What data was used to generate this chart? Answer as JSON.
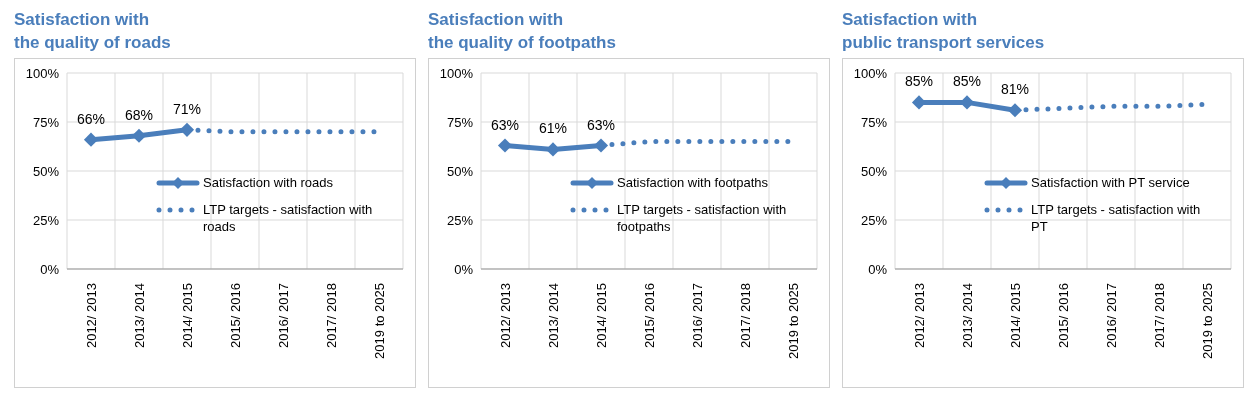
{
  "chart_data": [
    {
      "type": "line",
      "title": "Satisfaction with\nthe quality of roads",
      "categories": [
        "2012/ 2013",
        "2013/ 2014",
        "2014/ 2015",
        "2015/ 2016",
        "2016/ 2017",
        "2017/ 2018",
        "2019 to 2025"
      ],
      "series": [
        {
          "name": "Satisfaction with roads",
          "color": "#4a7ebb",
          "values": [
            66,
            68,
            71,
            null,
            null,
            null,
            null
          ],
          "value_labels": [
            "66%",
            "68%",
            "71%",
            null,
            null,
            null,
            null
          ],
          "marker": "diamond",
          "line_style": "solid"
        },
        {
          "name": "LTP targets - satisfaction with roads",
          "color": "#4a7ebb",
          "values": [
            null,
            null,
            71,
            70,
            70,
            70,
            70
          ],
          "marker": "none",
          "line_style": "dotted"
        }
      ],
      "ylim": [
        0,
        100
      ],
      "yticks": [
        {
          "value": 0,
          "label": "0%"
        },
        {
          "value": 25,
          "label": "25%"
        },
        {
          "value": 50,
          "label": "50%"
        },
        {
          "value": 75,
          "label": "75%"
        },
        {
          "value": 100,
          "label": "100%"
        }
      ],
      "grid": true,
      "legend": "right"
    },
    {
      "type": "line",
      "title": "Satisfaction with\nthe quality of footpaths",
      "categories": [
        "2012/ 2013",
        "2013/ 2014",
        "2014/ 2015",
        "2015/ 2016",
        "2016/ 2017",
        "2017/ 2018",
        "2019 to 2025"
      ],
      "series": [
        {
          "name": "Satisfaction with footpaths",
          "color": "#4a7ebb",
          "values": [
            63,
            61,
            63,
            null,
            null,
            null,
            null
          ],
          "value_labels": [
            "63%",
            "61%",
            "63%",
            null,
            null,
            null,
            null
          ],
          "marker": "diamond",
          "line_style": "solid"
        },
        {
          "name": "LTP targets - satisfaction with footpaths",
          "color": "#4a7ebb",
          "values": [
            null,
            null,
            63,
            65,
            65,
            65,
            65
          ],
          "marker": "none",
          "line_style": "dotted"
        }
      ],
      "ylim": [
        0,
        100
      ],
      "yticks": [
        {
          "value": 0,
          "label": "0%"
        },
        {
          "value": 25,
          "label": "25%"
        },
        {
          "value": 50,
          "label": "50%"
        },
        {
          "value": 75,
          "label": "75%"
        },
        {
          "value": 100,
          "label": "100%"
        }
      ],
      "grid": true,
      "legend": "right"
    },
    {
      "type": "line",
      "title": "Satisfaction with\npublic transport services",
      "categories": [
        "2012/ 2013",
        "2013/ 2014",
        "2014/ 2015",
        "2015/ 2016",
        "2016/ 2017",
        "2017/ 2018",
        "2019 to 2025"
      ],
      "series": [
        {
          "name": "Satisfaction with PT service",
          "color": "#4a7ebb",
          "values": [
            85,
            85,
            81,
            null,
            null,
            null,
            null
          ],
          "value_labels": [
            "85%",
            "85%",
            "81%",
            null,
            null,
            null,
            null
          ],
          "marker": "diamond",
          "line_style": "solid"
        },
        {
          "name": "LTP targets - satisfaction with PT",
          "color": "#4a7ebb",
          "values": [
            null,
            null,
            81,
            82,
            83,
            83,
            84
          ],
          "marker": "none",
          "line_style": "dotted"
        }
      ],
      "ylim": [
        0,
        100
      ],
      "yticks": [
        {
          "value": 0,
          "label": "0%"
        },
        {
          "value": 25,
          "label": "25%"
        },
        {
          "value": 50,
          "label": "50%"
        },
        {
          "value": 75,
          "label": "75%"
        },
        {
          "value": 100,
          "label": "100%"
        }
      ],
      "grid": true,
      "legend": "right"
    }
  ]
}
